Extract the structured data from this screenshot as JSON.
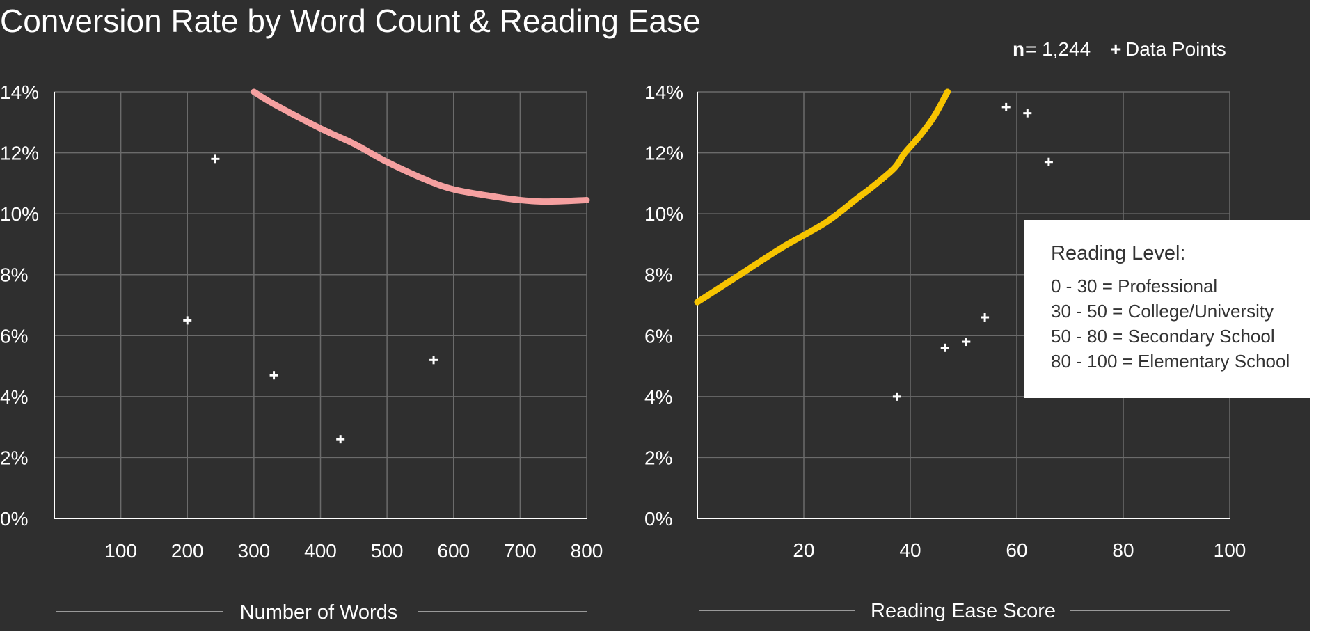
{
  "title": "Conversion Rate by Word Count & Reading Ease",
  "meta": {
    "n_label": "n",
    "n_value": "= 1,244",
    "marker_glyph": "+",
    "points_label": "Data Points"
  },
  "legend_box": {
    "title": "Reading Level:",
    "lines": [
      "0 - 30 = Professional",
      "30 - 50 = College/University",
      "50 - 80 = Secondary School",
      "80 - 100 = Elementary School"
    ]
  },
  "colors": {
    "background": "#2f2f2f",
    "grid": "#6b6b6b",
    "axis": "#ffffff",
    "text": "#ffffff",
    "points": "#ffffff",
    "words_line": "#f5a0a0",
    "ease_line": "#f7c400",
    "legend_bg": "#ffffff",
    "legend_text": "#333333"
  },
  "chart_data": [
    {
      "type": "scatter",
      "xlabel": "Number of Words",
      "ylabel": "",
      "xlim": [
        0,
        800
      ],
      "ylim": [
        0,
        14
      ],
      "xticks": [
        100,
        200,
        300,
        400,
        500,
        600,
        700,
        800
      ],
      "yticks": [
        0,
        2,
        4,
        6,
        8,
        10,
        12,
        14
      ],
      "ytick_labels": [
        "0%",
        "2%",
        "4%",
        "6%",
        "8%",
        "10%",
        "12%",
        "14%"
      ],
      "grid": true,
      "points": [
        {
          "x": 200,
          "y": 6.5
        },
        {
          "x": 242,
          "y": 11.8
        },
        {
          "x": 330,
          "y": 4.7
        },
        {
          "x": 430,
          "y": 2.6
        },
        {
          "x": 570,
          "y": 5.2
        }
      ],
      "trend_line": [
        {
          "x": 300,
          "y": 14.0
        },
        {
          "x": 330,
          "y": 13.6
        },
        {
          "x": 400,
          "y": 12.8
        },
        {
          "x": 450,
          "y": 12.3
        },
        {
          "x": 500,
          "y": 11.7
        },
        {
          "x": 560,
          "y": 11.1
        },
        {
          "x": 600,
          "y": 10.8
        },
        {
          "x": 650,
          "y": 10.6
        },
        {
          "x": 700,
          "y": 10.45
        },
        {
          "x": 740,
          "y": 10.4
        },
        {
          "x": 800,
          "y": 10.45
        }
      ]
    },
    {
      "type": "scatter",
      "xlabel": "Reading Ease Score",
      "ylabel": "",
      "xlim": [
        0,
        100
      ],
      "ylim": [
        0,
        14
      ],
      "xticks": [
        20,
        40,
        60,
        80,
        100
      ],
      "yticks": [
        0,
        2,
        4,
        6,
        8,
        10,
        12,
        14
      ],
      "ytick_labels": [
        "0%",
        "2%",
        "4%",
        "6%",
        "8%",
        "10%",
        "12%",
        "14%"
      ],
      "grid": true,
      "points": [
        {
          "x": 37.5,
          "y": 4.0
        },
        {
          "x": 46.5,
          "y": 5.6
        },
        {
          "x": 50.5,
          "y": 5.8
        },
        {
          "x": 54,
          "y": 6.6
        },
        {
          "x": 58,
          "y": 13.5
        },
        {
          "x": 62,
          "y": 13.3
        },
        {
          "x": 66,
          "y": 11.7
        }
      ],
      "trend_line": [
        {
          "x": 0,
          "y": 7.1
        },
        {
          "x": 8,
          "y": 8.0
        },
        {
          "x": 16,
          "y": 8.9
        },
        {
          "x": 24,
          "y": 9.7
        },
        {
          "x": 30,
          "y": 10.5
        },
        {
          "x": 33,
          "y": 10.9
        },
        {
          "x": 37,
          "y": 11.5
        },
        {
          "x": 39,
          "y": 12.0
        },
        {
          "x": 42,
          "y": 12.6
        },
        {
          "x": 44.5,
          "y": 13.2
        },
        {
          "x": 47,
          "y": 14.0
        }
      ]
    }
  ]
}
